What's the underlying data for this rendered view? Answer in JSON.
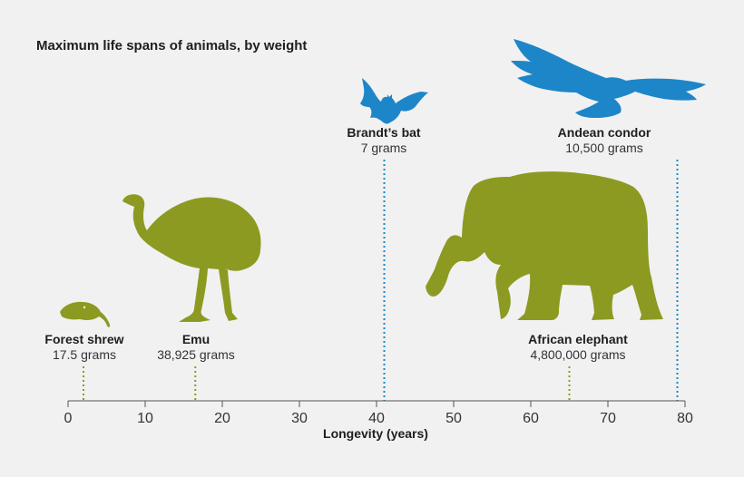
{
  "colors": {
    "mammal_ground": "#8c9a22",
    "flying": "#1d86c9",
    "axis": "#555555"
  },
  "chart_data": {
    "type": "scatter",
    "title": "Maximum life spans of animals, by weight",
    "xlabel": "Longevity (years)",
    "xlim": [
      0,
      80
    ],
    "xticks": [
      0,
      10,
      20,
      30,
      40,
      50,
      60,
      70,
      80
    ],
    "points": [
      {
        "name": "Forest shrew",
        "weight": "17.5 grams",
        "x": 2,
        "color": "#8c9a22",
        "icon": "shrew-silhouette"
      },
      {
        "name": "Emu",
        "weight": "38,925 grams",
        "x": 16.5,
        "color": "#8c9a22",
        "icon": "emu-silhouette"
      },
      {
        "name": "Brandt’s bat",
        "weight": "7 grams",
        "x": 41,
        "color": "#1d86c9",
        "icon": "bat-silhouette"
      },
      {
        "name": "African elephant",
        "weight": "4,800,000 grams",
        "x": 65,
        "color": "#8c9a22",
        "icon": "elephant-silhouette"
      },
      {
        "name": "Andean condor",
        "weight": "10,500 grams",
        "x": 79,
        "color": "#1d86c9",
        "icon": "condor-silhouette"
      }
    ]
  }
}
